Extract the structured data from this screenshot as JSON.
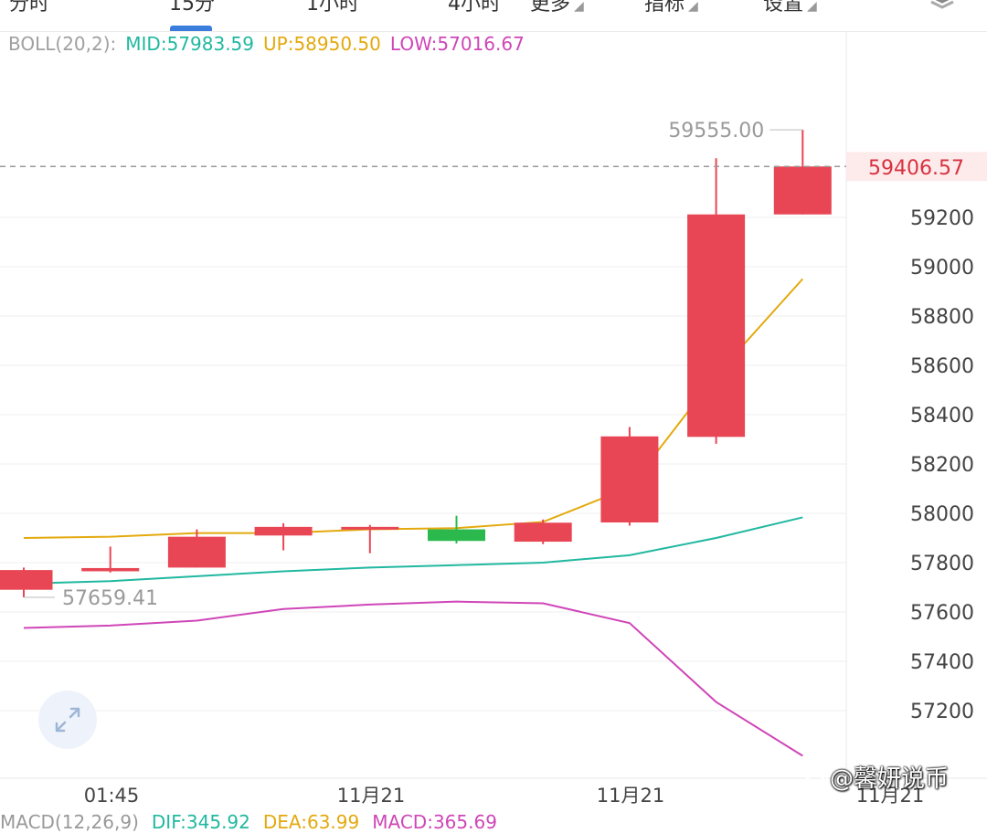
{
  "top_tabs": [
    {
      "label": "分时",
      "caret": false
    },
    {
      "label": "15分",
      "caret": false
    },
    {
      "label": "1小时",
      "caret": false
    },
    {
      "label": "4小时",
      "caret": false
    },
    {
      "label": "更多",
      "caret": true
    },
    {
      "label": "指标",
      "caret": true
    },
    {
      "label": "设置",
      "caret": true
    }
  ],
  "boll": {
    "label": "BOLL(20,2):",
    "mid_label": "MID:57983.59",
    "up_label": "UP:58950.50",
    "low_label": "LOW:57016.67",
    "colors": {
      "label": "#a0a0a0",
      "mid": "#21b8a0",
      "up": "#e3a90d",
      "low": "#cf46b8"
    }
  },
  "chart_data": {
    "type": "candlestick",
    "y_range": [
      57000,
      59700
    ],
    "y_ticks": [
      57200,
      57400,
      57600,
      57800,
      58000,
      58200,
      58400,
      58600,
      58800,
      59000,
      59200
    ],
    "x_labels": [
      "01:45",
      "11月21",
      "11月21",
      "11月21"
    ],
    "current_price": 59406.57,
    "current_price_label": "59406.57",
    "high_marker": {
      "value": 59555.0,
      "label": "59555.00"
    },
    "low_marker": {
      "value": 57659.41,
      "label": "57659.41"
    },
    "candles": [
      {
        "open": 57690,
        "close": 57770,
        "high": 57780,
        "low": 57659.41,
        "color": "red"
      },
      {
        "open": 57765,
        "close": 57778,
        "high": 57865,
        "low": 57760,
        "color": "red"
      },
      {
        "open": 57780,
        "close": 57905,
        "high": 57935,
        "low": 57780,
        "color": "red"
      },
      {
        "open": 57910,
        "close": 57945,
        "high": 57960,
        "low": 57850,
        "color": "red"
      },
      {
        "open": 57936,
        "close": 57945,
        "high": 57953,
        "low": 57838,
        "color": "red"
      },
      {
        "open": 57935,
        "close": 57888,
        "high": 57990,
        "low": 57878,
        "color": "green"
      },
      {
        "open": 57885,
        "close": 57962,
        "high": 57975,
        "low": 57875,
        "color": "red"
      },
      {
        "open": 57963,
        "close": 58312,
        "high": 58350,
        "low": 57950,
        "color": "red"
      },
      {
        "open": 58310,
        "close": 59212,
        "high": 59440,
        "low": 58282,
        "color": "red"
      },
      {
        "open": 59212,
        "close": 59406.57,
        "high": 59555.0,
        "low": 59212,
        "color": "red"
      }
    ],
    "series": [
      {
        "name": "UP",
        "values": [
          57900,
          57905,
          57920,
          57920,
          57935,
          57940,
          57965,
          58105,
          58560,
          58950.5
        ]
      },
      {
        "name": "MID",
        "values": [
          57715,
          57725,
          57745,
          57765,
          57780,
          57790,
          57800,
          57830,
          57900,
          57983.59
        ]
      },
      {
        "name": "LOW",
        "values": [
          57535,
          57545,
          57565,
          57612,
          57630,
          57642,
          57635,
          57555,
          57235,
          57016.67
        ]
      }
    ],
    "colors": {
      "up_candle": "#e84654",
      "down_candle": "#2bb94d",
      "grid": "#efefef",
      "axis_text": "#444444",
      "price_tag_bg": "#fdebec",
      "price_tag_text": "#d8313f",
      "dashed": "#9a9a9a",
      "marker_text": "#9a9a9a"
    }
  },
  "macd": {
    "label": "MACD(12,26,9)",
    "dif_label": "DIF:345.92",
    "dea_label": "DEA:63.99",
    "macd_label": "MACD:365.69"
  },
  "watermark": "@馨妍说币",
  "icons": {
    "expand": "expand-arrows-icon",
    "watermark": "weibo-logo-icon"
  }
}
